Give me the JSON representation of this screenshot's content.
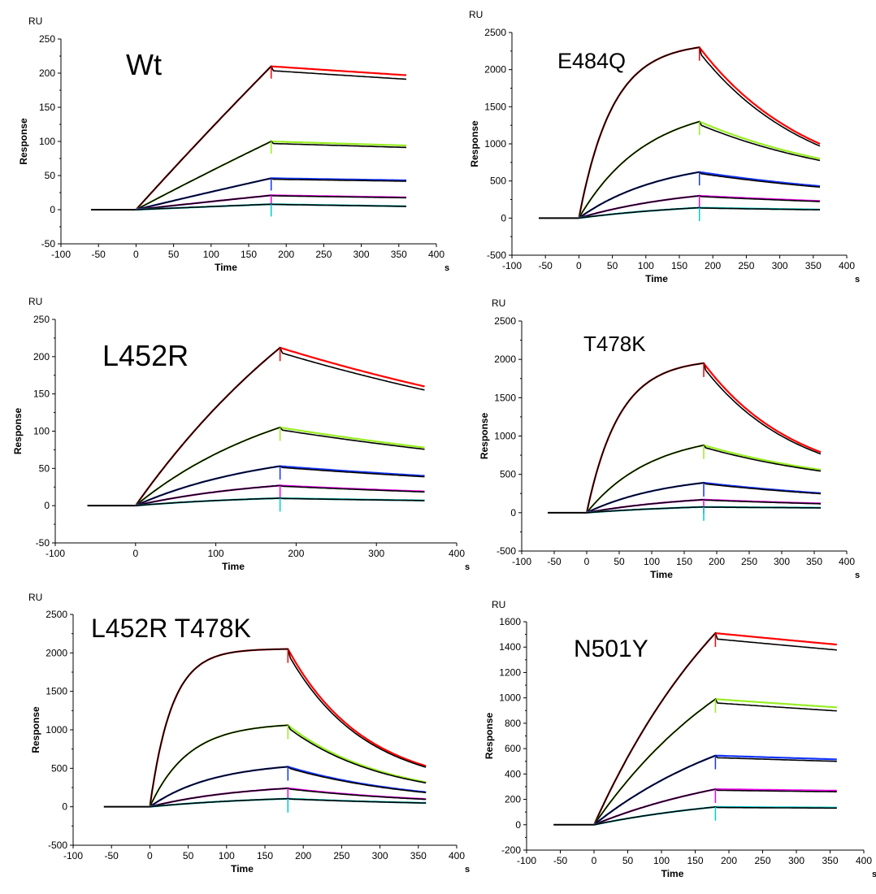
{
  "colors": {
    "axis": "#000000",
    "fit": "#000000",
    "red": "#ff0000",
    "green": "#99ee22",
    "blue": "#1133ff",
    "magenta": "#ee00ee",
    "cyan": "#00cccc"
  },
  "chart_data": [
    {
      "type": "line",
      "title": "Wt",
      "ylabel": "Response",
      "xlabel": "Time",
      "y_unit": "RU",
      "x_unit": "s",
      "xlim": [
        -100,
        400
      ],
      "ylim": [
        -50,
        250
      ],
      "xticks": [
        -100,
        -50,
        0,
        50,
        100,
        150,
        200,
        250,
        300,
        350,
        400
      ],
      "yticks": [
        -50,
        0,
        50,
        100,
        150,
        200,
        250
      ],
      "injection_start": 0,
      "injection_end": 180,
      "x_start": -60,
      "x_end": 360,
      "series": [
        {
          "color": "red",
          "plateau": 210,
          "end": 197,
          "kobs": 0.0005,
          "kd": 0.0003
        },
        {
          "color": "green",
          "plateau": 100,
          "end": 94,
          "kobs": 0.0005,
          "kd": 0.0003
        },
        {
          "color": "blue",
          "plateau": 46,
          "end": 43,
          "kobs": 0.0005,
          "kd": 0.0003
        },
        {
          "color": "magenta",
          "plateau": 21,
          "end": 18,
          "kobs": 0.0005,
          "kd": 0.0003
        },
        {
          "color": "cyan",
          "plateau": 8,
          "end": 5,
          "kobs": 0.0005,
          "kd": 0.0003
        }
      ]
    },
    {
      "type": "line",
      "title": "E484Q",
      "ylabel": "Response",
      "xlabel": "Time",
      "y_unit": "RU",
      "x_unit": "s",
      "xlim": [
        -100,
        400
      ],
      "ylim": [
        -500,
        2500
      ],
      "xticks": [
        -100,
        -50,
        0,
        50,
        100,
        150,
        200,
        250,
        300,
        350,
        400
      ],
      "yticks": [
        -500,
        0,
        500,
        1000,
        1500,
        2000,
        2500
      ],
      "injection_start": 0,
      "injection_end": 180,
      "x_start": -60,
      "x_end": 360,
      "series": [
        {
          "color": "red",
          "plateau": 2300,
          "end": 1000,
          "kobs": 0.02,
          "kd": 0.006
        },
        {
          "color": "green",
          "plateau": 1300,
          "end": 800,
          "kobs": 0.01,
          "kd": 0.004
        },
        {
          "color": "blue",
          "plateau": 620,
          "end": 430,
          "kobs": 0.008,
          "kd": 0.003
        },
        {
          "color": "magenta",
          "plateau": 300,
          "end": 230,
          "kobs": 0.006,
          "kd": 0.002
        },
        {
          "color": "cyan",
          "plateau": 140,
          "end": 115,
          "kobs": 0.005,
          "kd": 0.002
        }
      ]
    },
    {
      "type": "line",
      "title": "L452R",
      "ylabel": "Response",
      "xlabel": "Time",
      "y_unit": "RU",
      "x_unit": "s",
      "xlim": [
        -100,
        400
      ],
      "ylim": [
        -50,
        250
      ],
      "xticks": [
        -100,
        0,
        100,
        200,
        300,
        400
      ],
      "yticks": [
        -50,
        0,
        50,
        100,
        150,
        200,
        250
      ],
      "injection_start": 0,
      "injection_end": 180,
      "x_start": -60,
      "x_end": 360,
      "series": [
        {
          "color": "red",
          "plateau": 212,
          "end": 160,
          "kobs": 0.003,
          "kd": 0.0016
        },
        {
          "color": "green",
          "plateau": 105,
          "end": 78,
          "kobs": 0.005,
          "kd": 0.0016
        },
        {
          "color": "blue",
          "plateau": 53,
          "end": 40,
          "kobs": 0.006,
          "kd": 0.0016
        },
        {
          "color": "magenta",
          "plateau": 27,
          "end": 19,
          "kobs": 0.006,
          "kd": 0.0016
        },
        {
          "color": "cyan",
          "plateau": 10,
          "end": 7,
          "kobs": 0.006,
          "kd": 0.0016
        }
      ]
    },
    {
      "type": "line",
      "title": "T478K",
      "ylabel": "Response",
      "xlabel": "Time",
      "y_unit": "RU",
      "x_unit": "s",
      "xlim": [
        -100,
        400
      ],
      "ylim": [
        -500,
        2500
      ],
      "xticks": [
        -100,
        -50,
        0,
        50,
        100,
        150,
        200,
        250,
        300,
        350,
        400
      ],
      "yticks": [
        -500,
        0,
        500,
        1000,
        1500,
        2000,
        2500
      ],
      "injection_start": 0,
      "injection_end": 180,
      "x_start": -60,
      "x_end": 360,
      "series": [
        {
          "color": "red",
          "plateau": 1950,
          "end": 790,
          "kobs": 0.02,
          "kd": 0.007
        },
        {
          "color": "green",
          "plateau": 880,
          "end": 560,
          "kobs": 0.01,
          "kd": 0.004
        },
        {
          "color": "blue",
          "plateau": 390,
          "end": 255,
          "kobs": 0.008,
          "kd": 0.003
        },
        {
          "color": "magenta",
          "plateau": 170,
          "end": 120,
          "kobs": 0.006,
          "kd": 0.002
        },
        {
          "color": "cyan",
          "plateau": 75,
          "end": 65,
          "kobs": 0.005,
          "kd": 0.002
        }
      ]
    },
    {
      "type": "line",
      "title": "L452R T478K",
      "ylabel": "Response",
      "xlabel": "Time",
      "y_unit": "RU",
      "x_unit": "s",
      "xlim": [
        -100,
        400
      ],
      "ylim": [
        -500,
        2500
      ],
      "xticks": [
        -100,
        -50,
        0,
        50,
        100,
        150,
        200,
        250,
        300,
        350,
        400
      ],
      "yticks": [
        -500,
        0,
        500,
        1000,
        1500,
        2000,
        2500
      ],
      "injection_start": 0,
      "injection_end": 180,
      "x_start": -60,
      "x_end": 360,
      "series": [
        {
          "color": "red",
          "plateau": 2050,
          "end": 530,
          "kobs": 0.035,
          "kd": 0.01
        },
        {
          "color": "green",
          "plateau": 1060,
          "end": 320,
          "kobs": 0.02,
          "kd": 0.008
        },
        {
          "color": "blue",
          "plateau": 520,
          "end": 190,
          "kobs": 0.012,
          "kd": 0.006
        },
        {
          "color": "magenta",
          "plateau": 240,
          "end": 100,
          "kobs": 0.008,
          "kd": 0.005
        },
        {
          "color": "cyan",
          "plateau": 105,
          "end": 50,
          "kobs": 0.006,
          "kd": 0.004
        }
      ]
    },
    {
      "type": "line",
      "title": "N501Y",
      "ylabel": "Response",
      "xlabel": "Time",
      "y_unit": "RU",
      "x_unit": "s",
      "xlim": [
        -100,
        400
      ],
      "ylim": [
        -200,
        1600
      ],
      "xticks": [
        -100,
        -50,
        0,
        50,
        100,
        150,
        200,
        250,
        300,
        350,
        400
      ],
      "yticks": [
        -200,
        0,
        200,
        400,
        600,
        800,
        1000,
        1200,
        1400,
        1600
      ],
      "injection_start": 0,
      "injection_end": 180,
      "x_start": -60,
      "x_end": 360,
      "series": [
        {
          "color": "red",
          "plateau": 1510,
          "end": 1420,
          "kobs": 0.004,
          "kd": 0.0003
        },
        {
          "color": "green",
          "plateau": 990,
          "end": 925,
          "kobs": 0.004,
          "kd": 0.0003
        },
        {
          "color": "blue",
          "plateau": 545,
          "end": 515,
          "kobs": 0.004,
          "kd": 0.0003
        },
        {
          "color": "magenta",
          "plateau": 280,
          "end": 268,
          "kobs": 0.004,
          "kd": 0.0003
        },
        {
          "color": "cyan",
          "plateau": 140,
          "end": 135,
          "kobs": 0.004,
          "kd": 0.0003
        }
      ]
    }
  ]
}
